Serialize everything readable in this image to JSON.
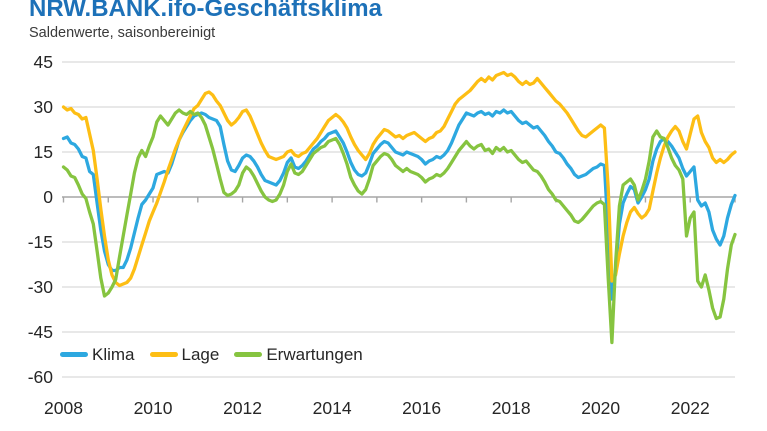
{
  "header": {
    "title": "NRW.BANK.ifo-Geschäftsklima",
    "subtitle": "Saldenwerte, saisonbereinigt"
  },
  "colors": {
    "title_blue": "#1D71B8",
    "gridline": "#D9D9D9",
    "zero_axis": "#A6A6A6",
    "axis_text": "#262626",
    "klima_blue": "#2DA8E0",
    "lage_orange": "#FDBE14",
    "erwartungen_green": "#86C440"
  },
  "chart_data": {
    "type": "line",
    "title": "NRW.BANK.ifo-Geschäftsklima",
    "subtitle": "Saldenwerte, saisonbereinigt",
    "x_unit": "month",
    "x_start": "2008-01",
    "x_end": "2023-01",
    "xticks": [
      2008,
      2010,
      2012,
      2014,
      2016,
      2018,
      2020,
      2022
    ],
    "ylim": [
      -60,
      45
    ],
    "yticks": [
      45,
      30,
      15,
      0,
      -15,
      -30,
      -45,
      -60
    ],
    "grid": "horizontal",
    "legend_position": "bottom-left",
    "series": [
      {
        "name": "Klima",
        "color": "#2DA8E0",
        "values": [
          19.5,
          20,
          18,
          17.5,
          16,
          13.5,
          13,
          8.5,
          7.5,
          -2,
          -11,
          -18,
          -22.5,
          -24.5,
          -24.5,
          -23.5,
          -23.5,
          -21,
          -17,
          -12,
          -7,
          -2.5,
          -1,
          1,
          3,
          7.5,
          8,
          8.5,
          8,
          11,
          15,
          19,
          21.5,
          23.5,
          25.5,
          27,
          27.5,
          28,
          27.5,
          26.5,
          26,
          25.5,
          23.5,
          17.5,
          12,
          9,
          8.5,
          10.5,
          13,
          14,
          13.5,
          12,
          10,
          7.5,
          5.5,
          5,
          4.5,
          4,
          5.5,
          8,
          11.5,
          13,
          10,
          9.5,
          10.5,
          12,
          14,
          16,
          17,
          18.5,
          19.5,
          21,
          21.5,
          22,
          20,
          18,
          15,
          11.5,
          9,
          7.5,
          7,
          8,
          11,
          14.5,
          16,
          17.5,
          18.5,
          18,
          16.5,
          15,
          14.5,
          14,
          15,
          14.5,
          14,
          13.5,
          12.5,
          11,
          12,
          12.5,
          13.5,
          13,
          14,
          15.5,
          18,
          21,
          24,
          26,
          28,
          27.5,
          27,
          28,
          28.5,
          27.5,
          28,
          27,
          28.5,
          28,
          29,
          28,
          28.5,
          27,
          25.5,
          24.5,
          25,
          24,
          23,
          23.5,
          22,
          20.5,
          18.5,
          17,
          15,
          14.5,
          13,
          11,
          9.5,
          7.5,
          6.5,
          7,
          7.5,
          8.5,
          9.5,
          10,
          11,
          10.5,
          -12,
          -34,
          -24,
          -9,
          -2,
          1,
          3.5,
          2.5,
          -2,
          0,
          2.5,
          6,
          12,
          16,
          18.5,
          19.5,
          18.5,
          17,
          15,
          13,
          9.5,
          7,
          8.5,
          10,
          -1,
          -3,
          -2,
          -5,
          -11,
          -14,
          -16,
          -13,
          -7,
          -2.5,
          0.5
        ]
      },
      {
        "name": "Lage",
        "color": "#FDBE14",
        "values": [
          30,
          29,
          29.5,
          28,
          27.5,
          26,
          26.5,
          21,
          15.5,
          6,
          -4,
          -13,
          -21,
          -26,
          -28.5,
          -29.5,
          -29,
          -28.5,
          -27,
          -24,
          -20,
          -16,
          -12,
          -8,
          -5,
          -2,
          1.5,
          5,
          9,
          12.5,
          16,
          19,
          22,
          24.5,
          27,
          29.5,
          30.5,
          32.5,
          34.5,
          35,
          34,
          32,
          30.5,
          28,
          25.5,
          24,
          25,
          26.5,
          28.5,
          29,
          27,
          24,
          21,
          18,
          15.5,
          13.5,
          13,
          12.5,
          13,
          13.5,
          15,
          15.5,
          14,
          13.5,
          14.5,
          15,
          16.5,
          18,
          19.5,
          21.5,
          23.5,
          25.5,
          26.5,
          27.5,
          26.5,
          25,
          23,
          20,
          17.5,
          15.5,
          14,
          12.5,
          14.5,
          17.5,
          19.5,
          21,
          22.5,
          22,
          21,
          20,
          20.5,
          19.5,
          20.5,
          21,
          21.5,
          20.5,
          19.5,
          18.5,
          19.5,
          20,
          21.5,
          22,
          23.5,
          26,
          28.5,
          31,
          32.5,
          33.5,
          34.5,
          35.5,
          37,
          38.5,
          39.5,
          38.5,
          40,
          39,
          40.5,
          41,
          41.5,
          40.5,
          41,
          40,
          38.5,
          37.5,
          38.5,
          37.5,
          38,
          39.5,
          38,
          36.5,
          35,
          33.5,
          32,
          31,
          29.5,
          28,
          26,
          24,
          22,
          20.5,
          20,
          21,
          22,
          23,
          24,
          23,
          3,
          -28,
          -26,
          -19,
          -13,
          -8.5,
          -5,
          -3.5,
          -5.5,
          -7,
          -6,
          -4,
          2,
          8,
          13,
          17,
          20,
          22,
          23.5,
          22,
          18.5,
          16,
          21,
          26,
          27,
          21.5,
          18.5,
          16.5,
          13,
          11.5,
          12.5,
          11.5,
          12.5,
          14,
          15
        ]
      },
      {
        "name": "Erwartungen",
        "color": "#86C440",
        "values": [
          10,
          9,
          7,
          6.5,
          4,
          1,
          -0.5,
          -5,
          -9,
          -18,
          -27,
          -33,
          -32,
          -30,
          -27.5,
          -20,
          -13,
          -6,
          1,
          8,
          13,
          15.5,
          13.5,
          17,
          20,
          25,
          27,
          25.5,
          24,
          26,
          28,
          29,
          28,
          27.5,
          28.5,
          27.5,
          28,
          26.5,
          24,
          20,
          16,
          11,
          6,
          1.5,
          0.5,
          1,
          2,
          4,
          8,
          10,
          9,
          7,
          4.5,
          2,
          0,
          -1,
          -1.5,
          -1,
          1,
          4,
          8.5,
          11,
          8,
          7.5,
          8.5,
          10.5,
          12.5,
          14.5,
          15.5,
          16.5,
          17,
          18.5,
          19,
          19.5,
          17.5,
          14.5,
          11,
          6.5,
          4,
          2,
          1,
          2.5,
          6,
          10.5,
          12,
          13.5,
          14.5,
          14,
          12.5,
          10.5,
          9.5,
          8.5,
          9.5,
          8.5,
          8,
          7.5,
          6.5,
          5,
          6,
          6.5,
          7.5,
          7,
          8,
          9.5,
          11.5,
          13.5,
          15.5,
          17,
          18.5,
          17,
          16,
          17,
          17.5,
          15.5,
          16,
          14.5,
          16.5,
          15.5,
          16.5,
          15,
          15.5,
          14,
          12.5,
          11.5,
          12,
          10.5,
          9,
          8.5,
          7,
          5,
          2.5,
          1,
          -1,
          -1.5,
          -3,
          -4.5,
          -6,
          -8,
          -8.5,
          -7.5,
          -6,
          -4.5,
          -3,
          -2,
          -1.5,
          -2.5,
          -27,
          -48.5,
          -22,
          -3,
          4,
          5,
          6,
          4,
          -1,
          2,
          6,
          12,
          20,
          22,
          20,
          19.5,
          16.5,
          13,
          10.5,
          9,
          6,
          -13,
          -7,
          -5,
          -28,
          -30,
          -26,
          -31,
          -37,
          -40.5,
          -40,
          -34,
          -24,
          -16,
          -12.5
        ]
      }
    ]
  }
}
